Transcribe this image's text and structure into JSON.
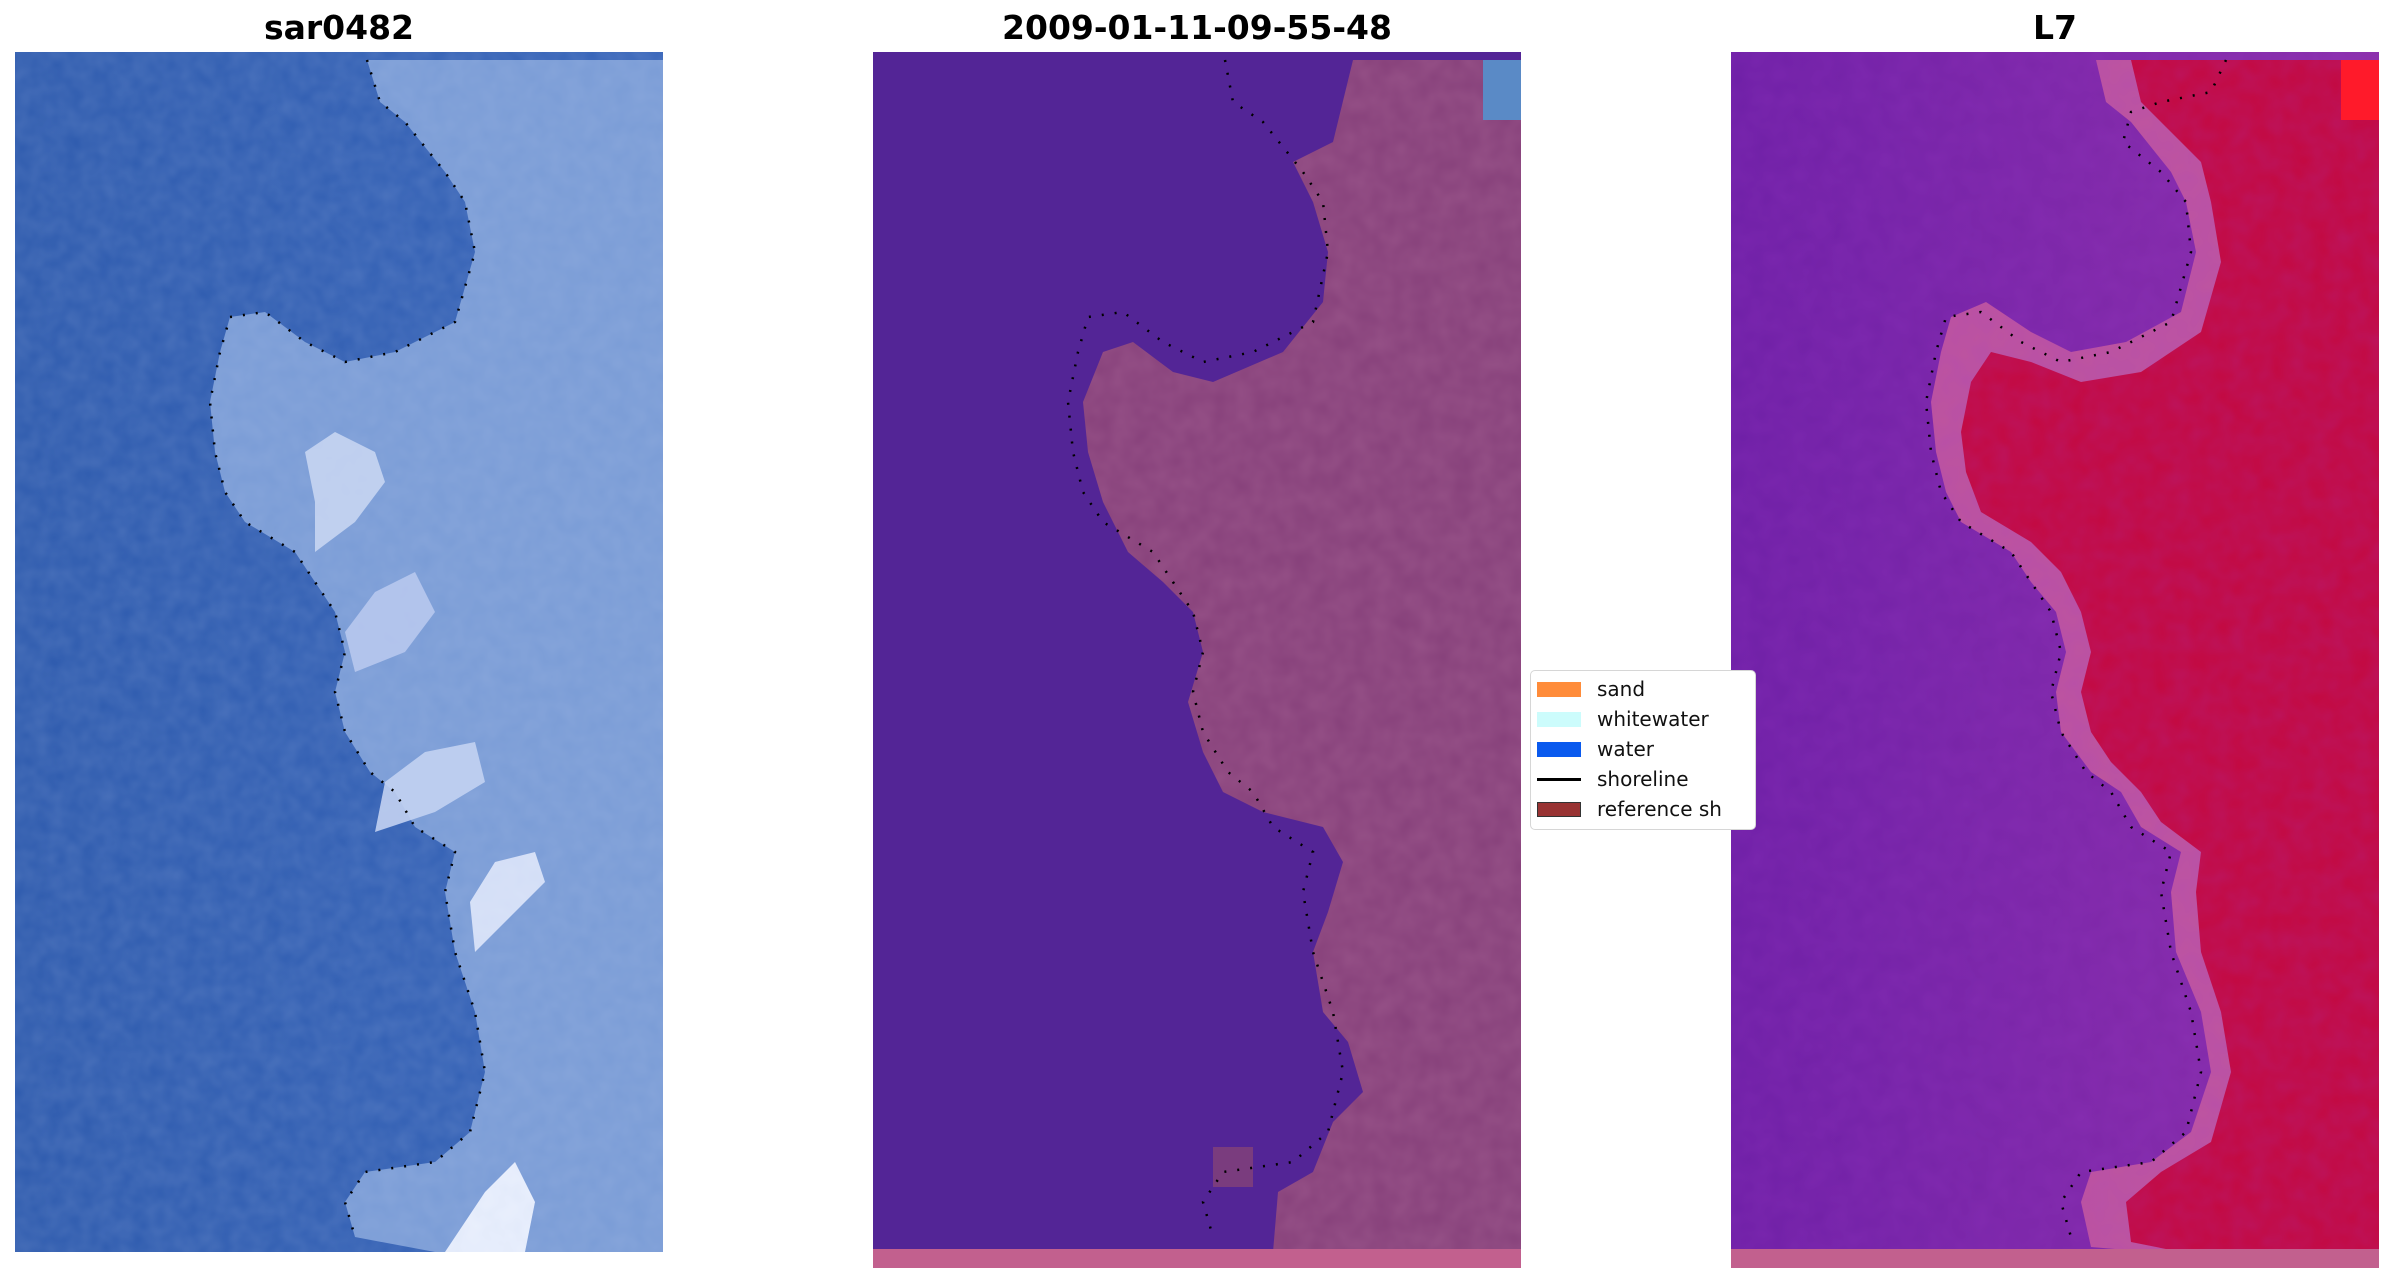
{
  "panels": [
    {
      "title": "sar0482"
    },
    {
      "title": "2009-01-11-09-55-48"
    },
    {
      "title": "L7"
    }
  ],
  "legend": {
    "items": [
      {
        "label": "sand",
        "color": "#ff8c3a"
      },
      {
        "label": "whitewater",
        "color": "#ccfcfc"
      },
      {
        "label": "water",
        "color": "#0a5aee"
      },
      {
        "label": "shoreline",
        "color": "#000000"
      },
      {
        "label": "reference sh",
        "color": "#993333"
      }
    ]
  },
  "colors": {
    "rgb_water": "#2f5fb4",
    "rgb_land": "#7a9cd6",
    "class_water": "#532596",
    "class_land": "#86407a",
    "class_bottom_band": "#c2608e",
    "mndwi_water": "#7a2aa6",
    "mndwi_land": "#c4083e"
  }
}
